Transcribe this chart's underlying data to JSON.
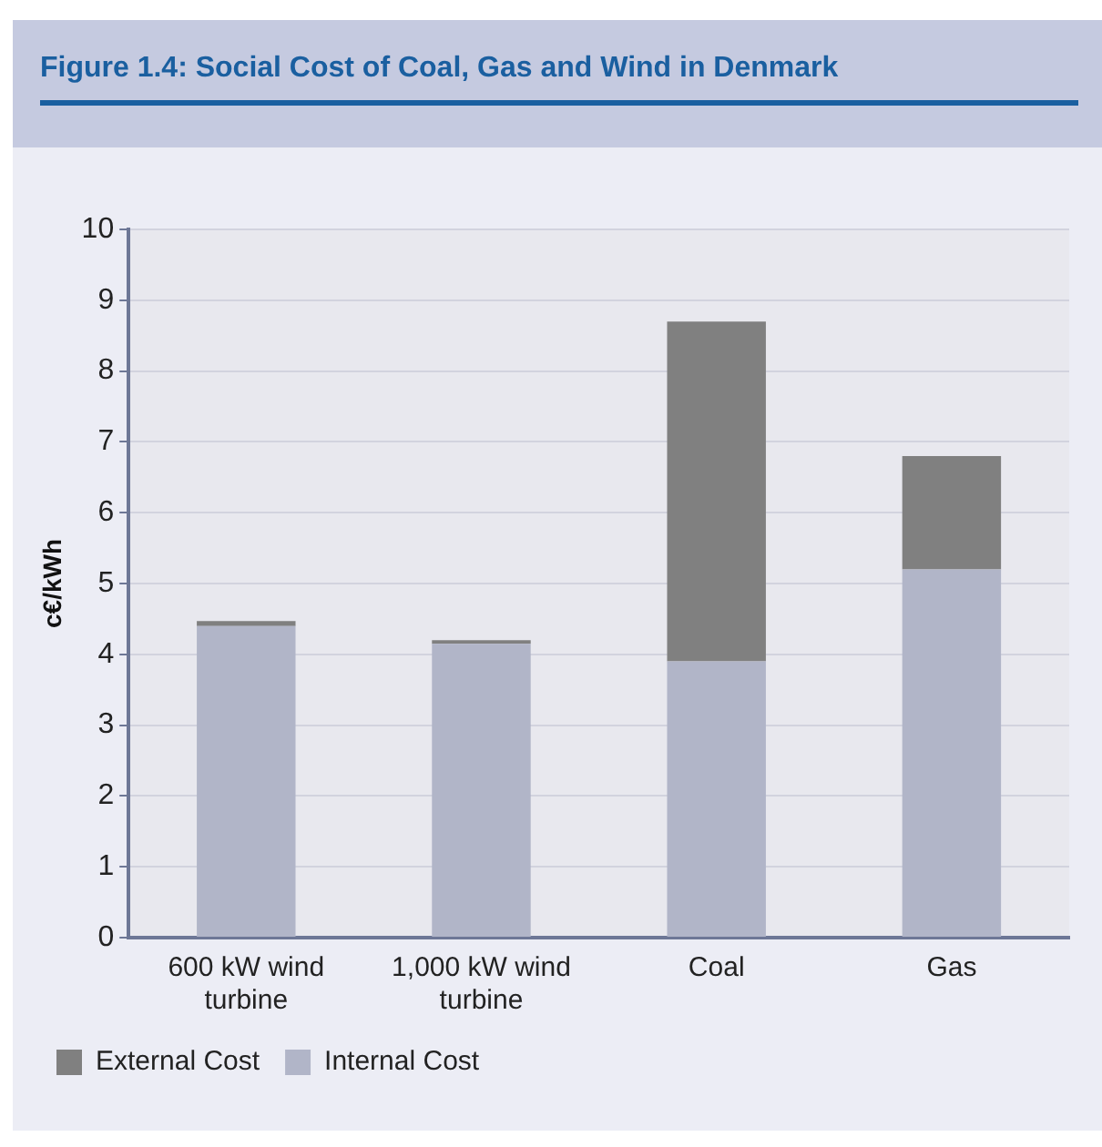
{
  "chart_data": {
    "type": "bar",
    "title": "Figure 1.4: Social Cost of Coal, Gas and Wind in Denmark",
    "ylabel": "c€/kWh",
    "categories": [
      "600 kW wind turbine",
      "1,000 kW wind turbine",
      "Coal",
      "Gas"
    ],
    "stacked": true,
    "ylim": [
      0,
      10
    ],
    "yticks": [
      0,
      1,
      2,
      3,
      4,
      5,
      6,
      7,
      8,
      9,
      10
    ],
    "grid": "y",
    "legend": "bottom left",
    "series": [
      {
        "name": "Internal Cost",
        "color": "#b1b5c8",
        "values": [
          4.4,
          4.15,
          3.9,
          5.2
        ]
      },
      {
        "name": "External Cost",
        "color": "#808080",
        "values": [
          0.07,
          0.05,
          4.8,
          1.6
        ]
      }
    ]
  }
}
